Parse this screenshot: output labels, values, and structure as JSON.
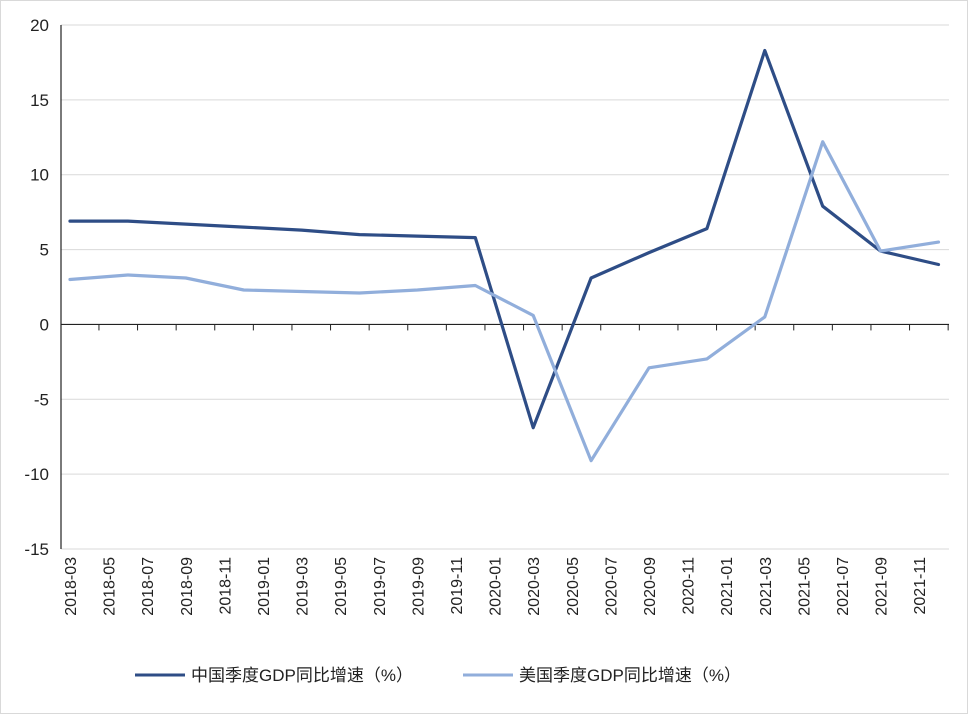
{
  "chart_data": {
    "type": "line",
    "title": "",
    "xlabel": "",
    "ylabel": "",
    "ylim": [
      -15,
      20
    ],
    "yticks": [
      "20",
      "15",
      "10",
      "5",
      "0",
      "-5",
      "-10",
      "-15"
    ],
    "x_tick_labels": [
      "2018-03",
      "2018-05",
      "2018-07",
      "2018-09",
      "2018-11",
      "2019-01",
      "2019-03",
      "2019-05",
      "2019-07",
      "2019-09",
      "2019-11",
      "2020-01",
      "2020-03",
      "2020-05",
      "2020-07",
      "2020-09",
      "2020-11",
      "2021-01",
      "2021-03",
      "2021-05",
      "2021-07",
      "2021-09",
      "2021-11"
    ],
    "x": [
      "2018-03",
      "2018-06",
      "2018-09",
      "2018-12",
      "2019-03",
      "2019-06",
      "2019-09",
      "2019-12",
      "2020-03",
      "2020-06",
      "2020-09",
      "2020-12",
      "2021-03",
      "2021-06",
      "2021-09",
      "2021-12"
    ],
    "grid": true,
    "legend_position": "bottom",
    "series": [
      {
        "name": "中国季度GDP同比增速（%）",
        "color": "#2e4d86",
        "values": [
          6.9,
          6.9,
          6.7,
          6.5,
          6.3,
          6.0,
          5.9,
          5.8,
          -6.9,
          3.1,
          4.8,
          6.4,
          18.3,
          7.9,
          4.9,
          4.0
        ]
      },
      {
        "name": "美国季度GDP同比增速（%）",
        "color": "#91aedb",
        "values": [
          3.0,
          3.3,
          3.1,
          2.3,
          2.2,
          2.1,
          2.3,
          2.6,
          0.6,
          -9.1,
          -2.9,
          -2.3,
          0.5,
          12.2,
          4.9,
          5.5
        ]
      }
    ]
  }
}
